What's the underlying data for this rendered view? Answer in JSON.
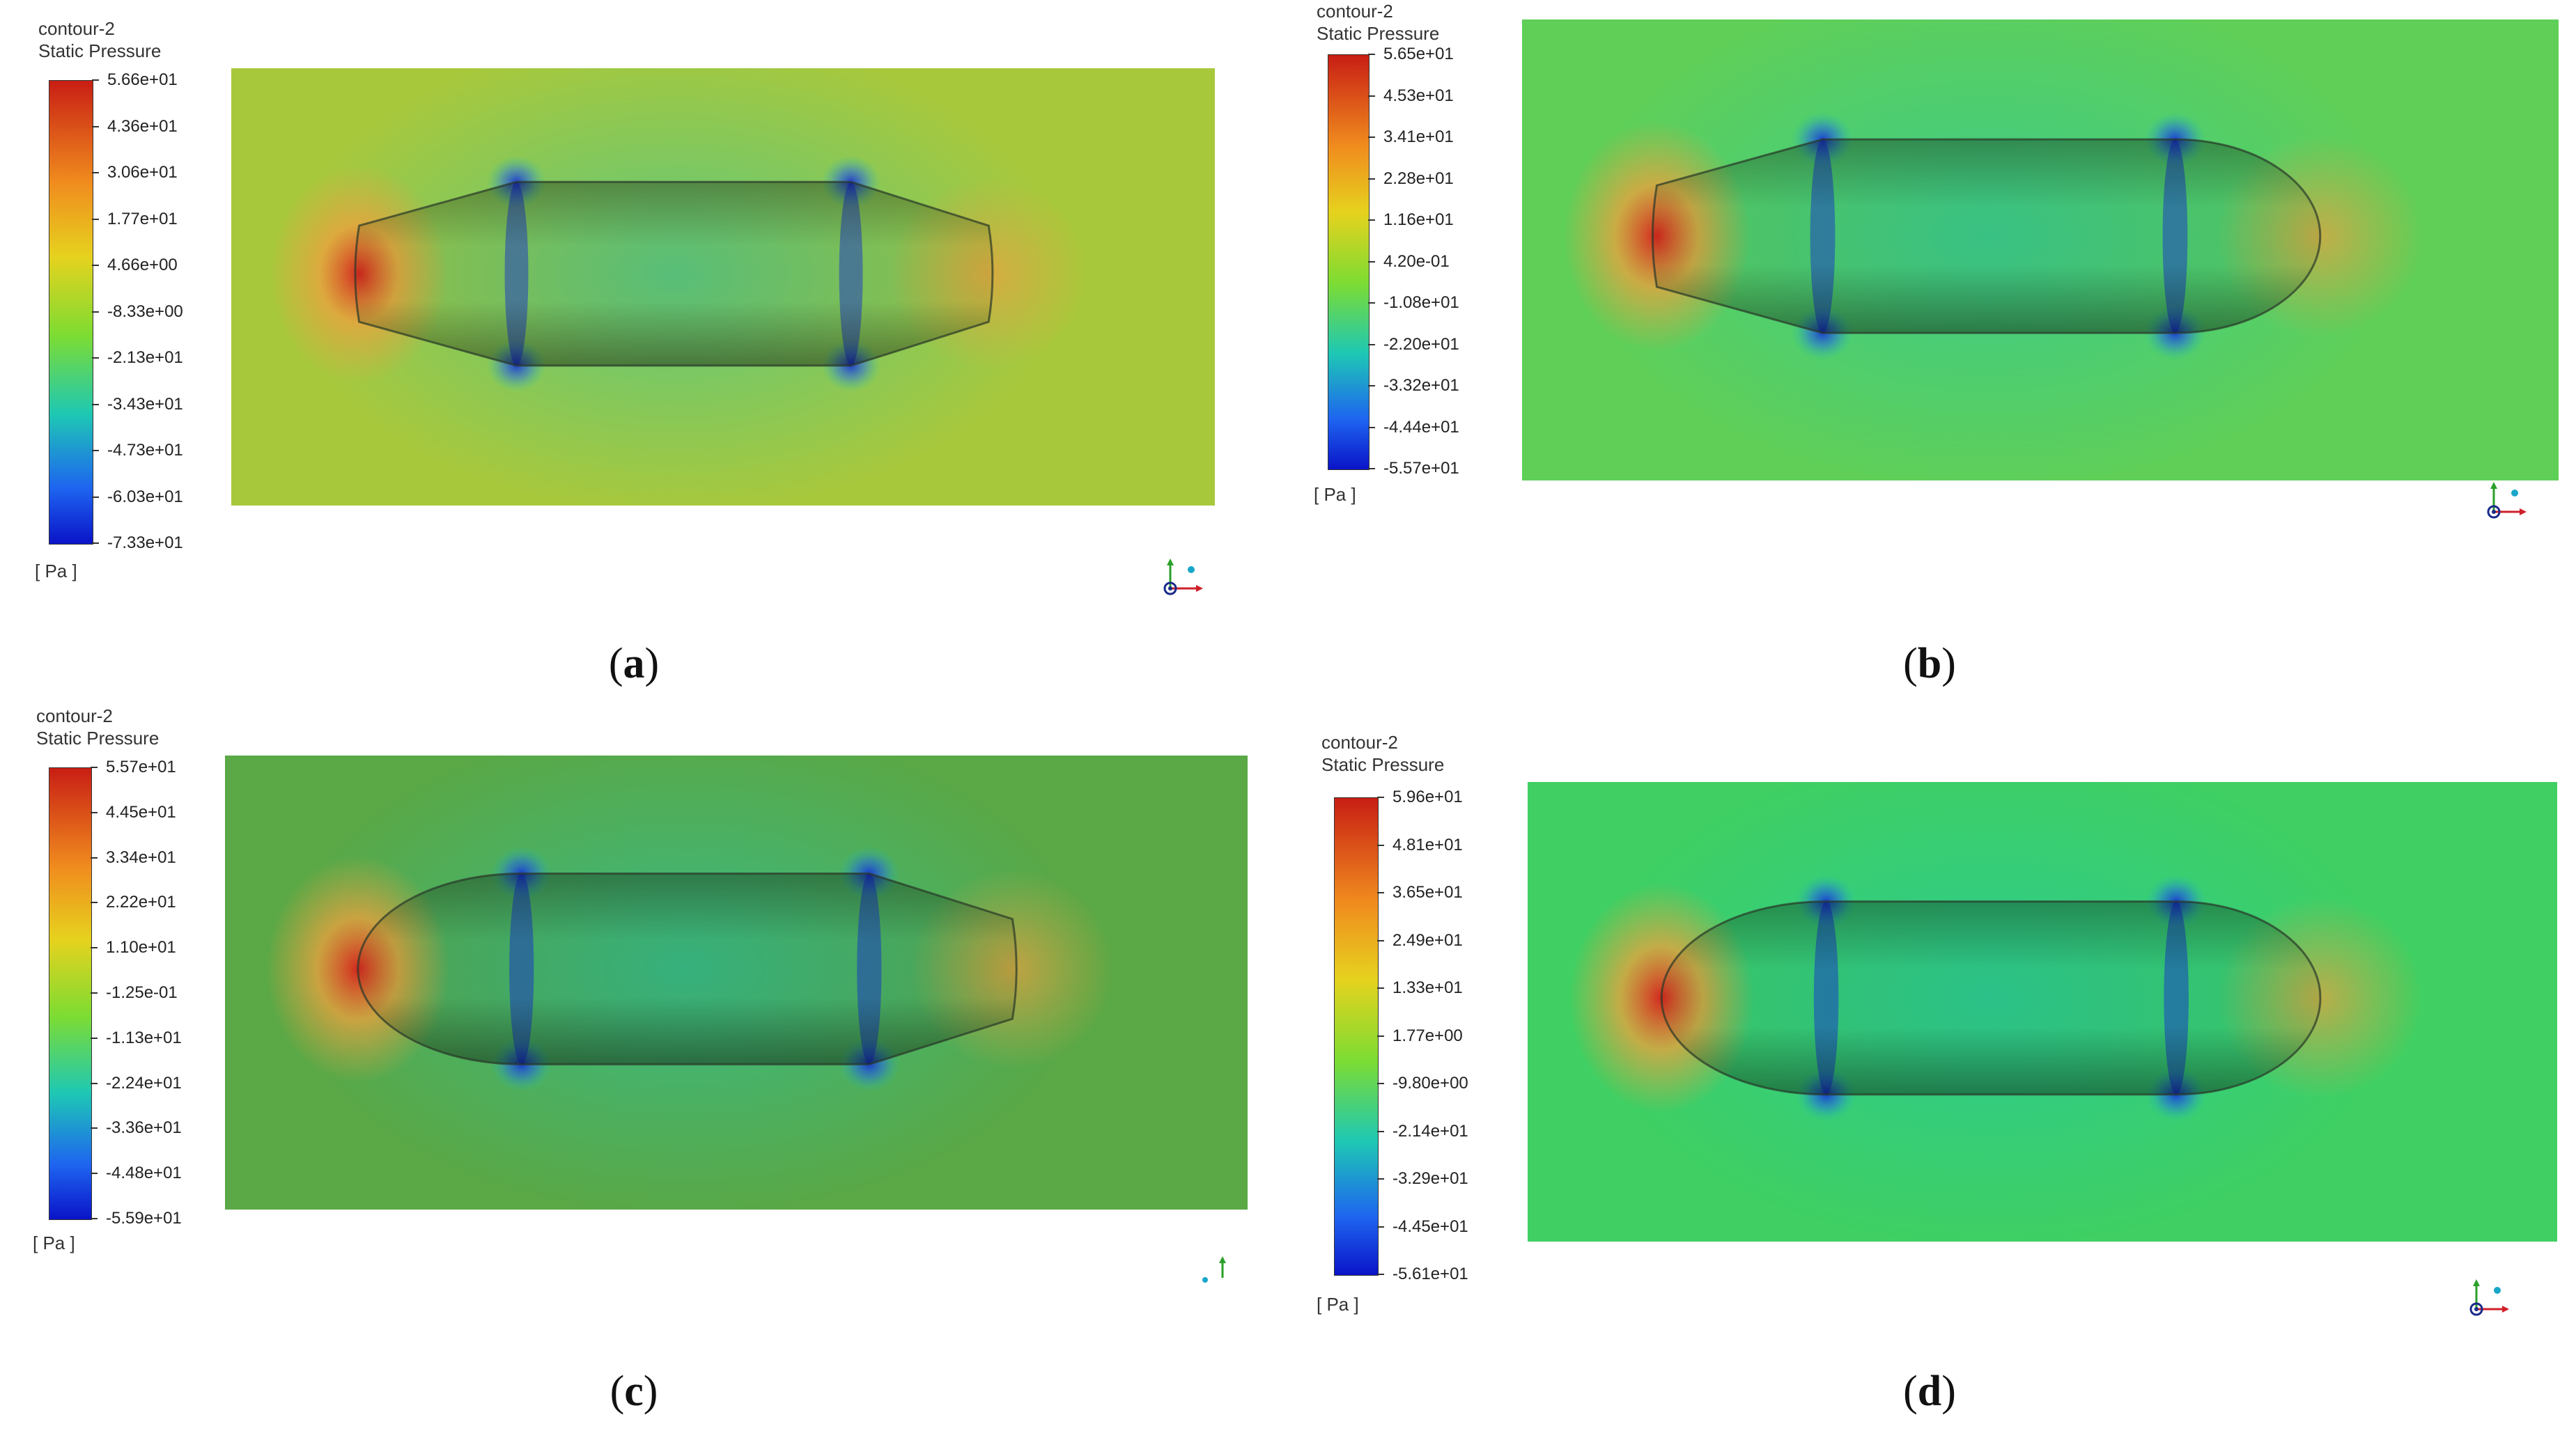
{
  "panels": [
    {
      "id": "a",
      "contour": "contour-2",
      "variable": "Static Pressure",
      "unit": "[ Pa ]",
      "caption": "a",
      "levels": [
        "5.66e+01",
        "4.36e+01",
        "3.06e+01",
        "1.77e+01",
        "4.66e+00",
        "-8.33e+00",
        "-2.13e+01",
        "-3.43e+01",
        "-4.73e+01",
        "-6.03e+01",
        "-7.33e+01"
      ],
      "background": "#a8c83c",
      "nose": "cone",
      "tail": "cone",
      "triad": "full"
    },
    {
      "id": "b",
      "contour": "contour-2",
      "variable": "Static Pressure",
      "unit": "[ Pa ]",
      "caption": "b",
      "levels": [
        "5.65e+01",
        "4.53e+01",
        "3.41e+01",
        "2.28e+01",
        "1.16e+01",
        "4.20e-01",
        "-1.08e+01",
        "-2.20e+01",
        "-3.32e+01",
        "-4.44e+01",
        "-5.57e+01"
      ],
      "background": "#5fcf58",
      "nose": "cone",
      "tail": "dome",
      "triad": "full"
    },
    {
      "id": "c",
      "contour": "contour-2",
      "variable": "Static Pressure",
      "unit": "[ Pa ]",
      "caption": "c",
      "levels": [
        "5.57e+01",
        "4.45e+01",
        "3.34e+01",
        "2.22e+01",
        "1.10e+01",
        "-1.25e-01",
        "-1.13e+01",
        "-2.24e+01",
        "-3.36e+01",
        "-4.48e+01",
        "-5.59e+01"
      ],
      "background": "#5aa846",
      "nose": "dome",
      "tail": "cone",
      "triad": "partial"
    },
    {
      "id": "d",
      "contour": "contour-2",
      "variable": "Static Pressure",
      "unit": "[ Pa ]",
      "caption": "d",
      "levels": [
        "5.96e+01",
        "4.81e+01",
        "3.65e+01",
        "2.49e+01",
        "1.33e+01",
        "1.77e+00",
        "-9.80e+00",
        "-2.14e+01",
        "-3.29e+01",
        "-4.45e+01",
        "-5.61e+01"
      ],
      "background": "#3fcf62",
      "nose": "dome",
      "tail": "dome",
      "triad": "full"
    }
  ],
  "colors": {
    "scale_top": "#c81e14",
    "scale_upper": "#f08c1e",
    "scale_mid_high": "#e6d21e",
    "scale_mid": "#7ddc32",
    "scale_mid_low": "#1ec8b4",
    "scale_low": "#1e64f0",
    "scale_bottom": "#0a14c8",
    "stagnation": "#d2281e",
    "wake": "#f0a03c",
    "suction": "#1428dc",
    "body_edge": "#283828"
  }
}
